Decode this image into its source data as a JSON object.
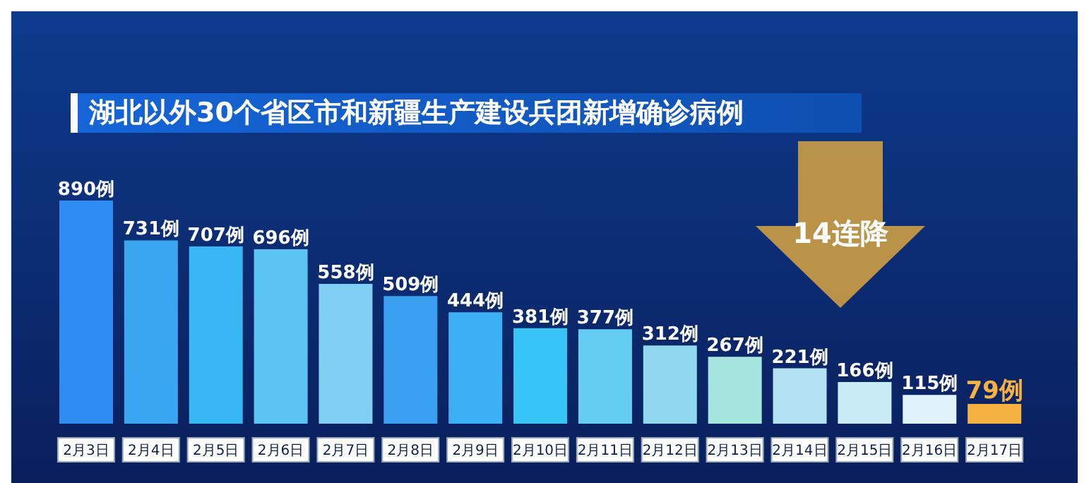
{
  "chart_data": {
    "type": "bar",
    "title": "湖北以外30个省区市和新疆生产建设兵团新增确诊病例",
    "categories": [
      "2月3日",
      "2月4日",
      "2月5日",
      "2月6日",
      "2月7日",
      "2月8日",
      "2月9日",
      "2月10日",
      "2月11日",
      "2月12日",
      "2月13日",
      "2月14日",
      "2月15日",
      "2月16日",
      "2月17日"
    ],
    "values": [
      890,
      731,
      707,
      696,
      558,
      509,
      444,
      381,
      377,
      312,
      267,
      221,
      166,
      115,
      79
    ],
    "value_labels": [
      "890例",
      "731例",
      "707例",
      "696例",
      "558例",
      "509例",
      "444例",
      "381例",
      "377例",
      "312例",
      "267例",
      "221例",
      "166例",
      "115例",
      "79例"
    ],
    "colors": [
      "#2f8cf0",
      "#3aa6f2",
      "#37b8f4",
      "#5cc4f3",
      "#7fd0f2",
      "#3a9ff0",
      "#3cb0f3",
      "#38c4f4",
      "#66cdf2",
      "#8fd8ef",
      "#a6e4de",
      "#b3e2f2",
      "#c8ebf5",
      "#dff3f8",
      "#f5b240"
    ],
    "annotations": [
      "14连降"
    ]
  }
}
